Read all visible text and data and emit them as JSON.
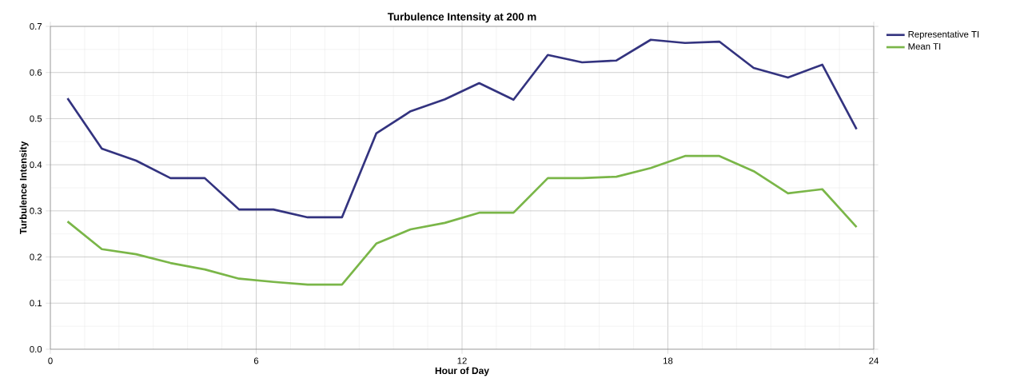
{
  "chart_data": {
    "type": "line",
    "title": "Turbulence Intensity at 200 m",
    "xlabel": "Hour of Day",
    "ylabel": "Turbulence Intensity",
    "x": [
      0.5,
      1.5,
      2.5,
      3.5,
      4.5,
      5.5,
      6.5,
      7.5,
      8.5,
      9.5,
      10.5,
      11.5,
      12.5,
      13.5,
      14.5,
      15.5,
      16.5,
      17.5,
      18.5,
      19.5,
      20.5,
      21.5,
      22.5,
      23.5
    ],
    "series": [
      {
        "name": "Representative TI",
        "color": "#33337f",
        "values": [
          0.544,
          0.435,
          0.409,
          0.371,
          0.371,
          0.303,
          0.303,
          0.286,
          0.286,
          0.468,
          0.516,
          0.542,
          0.577,
          0.541,
          0.638,
          0.622,
          0.626,
          0.671,
          0.664,
          0.667,
          0.61,
          0.589,
          0.617,
          0.477
        ]
      },
      {
        "name": "Mean TI",
        "color": "#7ab648",
        "values": [
          0.277,
          0.217,
          0.206,
          0.187,
          0.173,
          0.153,
          0.146,
          0.14,
          0.14,
          0.229,
          0.26,
          0.274,
          0.296,
          0.296,
          0.371,
          0.371,
          0.374,
          0.393,
          0.419,
          0.419,
          0.386,
          0.338,
          0.347,
          0.265
        ]
      }
    ],
    "xlim": [
      0,
      24
    ],
    "xticks": [
      0,
      6,
      12,
      18,
      24
    ],
    "ylim": [
      0,
      0.7
    ],
    "yticks": [
      {
        "value": 0,
        "label": "0.0"
      },
      {
        "value": 0.1,
        "label": "0.1"
      },
      {
        "value": 0.2,
        "label": "0.2"
      },
      {
        "value": 0.3,
        "label": "0.3"
      },
      {
        "value": 0.4,
        "label": "0.4"
      },
      {
        "value": 0.5,
        "label": "0.5"
      },
      {
        "value": 0.6,
        "label": "0.6"
      },
      {
        "value": 0.7,
        "label": "0.7"
      }
    ],
    "grid": true,
    "legend": "top right",
    "marker": "none",
    "line_style": "solid"
  }
}
